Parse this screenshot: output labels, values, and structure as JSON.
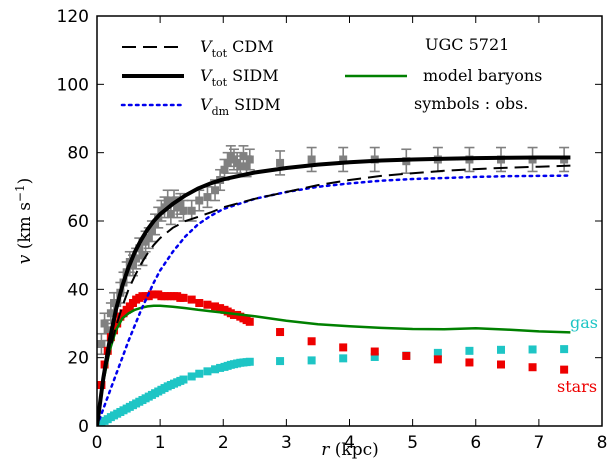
{
  "chart_data": {
    "type": "scatter",
    "title": "",
    "xlabel": {
      "sym": "r",
      "rest": " (kpc)"
    },
    "ylabel": {
      "sym": "v",
      "rest": " (km s",
      "sup": "−1",
      "close": ")"
    },
    "xlim": [
      0,
      8
    ],
    "ylim": [
      0,
      120
    ],
    "xticks": [
      "0",
      "1",
      "2",
      "3",
      "4",
      "5",
      "6",
      "7",
      "8"
    ],
    "yticks": [
      "0",
      "20",
      "40",
      "60",
      "80",
      "100",
      "120"
    ],
    "grid": false,
    "legend_placement": "top",
    "annotations": {
      "galaxy": "UGC 5721",
      "symbols": "symbols : obs.",
      "gas": "gas",
      "stars": "stars"
    },
    "series": [
      {
        "name": "V_tot CDM",
        "legend": {
          "sym": "V",
          "sub": "tot",
          "rest": " CDM"
        },
        "kind": "line",
        "style": "dashed",
        "color": "#000000",
        "width": 2,
        "x": [
          0,
          0.1,
          0.2,
          0.3,
          0.4,
          0.5,
          0.6,
          0.7,
          0.8,
          0.9,
          1.0,
          1.2,
          1.4,
          1.6,
          1.8,
          2.0,
          2.5,
          3.0,
          3.5,
          4.0,
          4.5,
          5.0,
          5.5,
          6.0,
          6.5,
          7.0,
          7.5
        ],
        "y": [
          0,
          13,
          22,
          29,
          35,
          40,
          44,
          47.5,
          50.5,
          53,
          55,
          58,
          60,
          61.2,
          62.5,
          64,
          66.5,
          68.5,
          70.5,
          72,
          73.2,
          74,
          74.7,
          75.2,
          75.6,
          75.9,
          76.2
        ]
      },
      {
        "name": "V_tot SIDM",
        "legend": {
          "sym": "V",
          "sub": "tot",
          "rest": " SIDM"
        },
        "kind": "line",
        "style": "solid",
        "color": "#000000",
        "width": 4,
        "x": [
          0,
          0.1,
          0.2,
          0.3,
          0.4,
          0.5,
          0.6,
          0.7,
          0.8,
          0.9,
          1.0,
          1.2,
          1.4,
          1.6,
          1.8,
          2.0,
          2.5,
          3.0,
          3.5,
          4.0,
          4.5,
          5.0,
          5.5,
          6.0,
          6.5,
          7.0,
          7.5
        ],
        "y": [
          0,
          14,
          25,
          34,
          41,
          46.5,
          51,
          54.5,
          57.5,
          60,
          62,
          65,
          67.5,
          69.5,
          71,
          72.2,
          74.2,
          75.5,
          76.5,
          77.2,
          77.7,
          78,
          78.2,
          78.4,
          78.5,
          78.6,
          78.6
        ]
      },
      {
        "name": "V_dm SIDM",
        "legend": {
          "sym": "V",
          "sub": "dm",
          "rest": " SIDM"
        },
        "kind": "line",
        "style": "dotted",
        "color": "#0000ee",
        "width": 2.5,
        "x": [
          0,
          0.1,
          0.2,
          0.3,
          0.4,
          0.5,
          0.6,
          0.7,
          0.8,
          0.9,
          1.0,
          1.2,
          1.4,
          1.6,
          1.8,
          2.0,
          2.5,
          3.0,
          3.5,
          4.0,
          4.5,
          5.0,
          5.5,
          6.0,
          6.5,
          7.0,
          7.5
        ],
        "y": [
          0,
          5,
          10,
          15,
          20,
          25,
          29.5,
          34,
          38,
          42,
          45.5,
          51,
          55.5,
          59,
          61.5,
          63.5,
          66.5,
          68.5,
          70,
          71,
          71.8,
          72.3,
          72.6,
          72.9,
          73.1,
          73.2,
          73.3
        ]
      },
      {
        "name": "model baryons",
        "legend": {
          "sym": "",
          "sub": "",
          "rest": "model baryons"
        },
        "kind": "line",
        "style": "solid",
        "color": "#008000",
        "width": 2.5,
        "x": [
          0,
          0.1,
          0.2,
          0.3,
          0.4,
          0.5,
          0.6,
          0.7,
          0.8,
          0.9,
          1.0,
          1.2,
          1.4,
          1.6,
          1.8,
          2.0,
          2.5,
          3.0,
          3.5,
          4.0,
          4.5,
          5.0,
          5.5,
          6.0,
          6.5,
          7.0,
          7.5
        ],
        "y": [
          0,
          13,
          22,
          28,
          31.5,
          33,
          34,
          34.6,
          35,
          35.2,
          35.2,
          34.9,
          34.5,
          34.0,
          33.6,
          33.2,
          32.1,
          30.8,
          29.8,
          29.2,
          28.7,
          28.4,
          28.3,
          28.6,
          28.2,
          27.7,
          27.4
        ]
      },
      {
        "name": "observed",
        "kind": "errorbar",
        "marker": "square",
        "color": "#808080",
        "x": [
          0.07,
          0.12,
          0.17,
          0.22,
          0.27,
          0.32,
          0.37,
          0.42,
          0.47,
          0.52,
          0.57,
          0.62,
          0.67,
          0.72,
          0.77,
          0.82,
          0.87,
          0.92,
          0.97,
          1.02,
          1.07,
          1.12,
          1.17,
          1.22,
          1.27,
          1.32,
          1.37,
          1.5,
          1.62,
          1.75,
          1.87,
          1.95,
          2.02,
          2.07,
          2.12,
          2.17,
          2.22,
          2.27,
          2.32,
          2.37,
          2.42,
          2.9,
          3.4,
          3.9,
          4.4,
          4.9,
          5.4,
          5.9,
          6.4,
          6.9,
          7.4
        ],
        "y": [
          24,
          30,
          28,
          33,
          36,
          36,
          39,
          42,
          45,
          48,
          47,
          49,
          52,
          50,
          54,
          55,
          57,
          59,
          61,
          63,
          64,
          66,
          62,
          66,
          64,
          65,
          63,
          63,
          66,
          67,
          69,
          72,
          75,
          77,
          79,
          78,
          77,
          76,
          79,
          76,
          78,
          77,
          78,
          78,
          78,
          77.5,
          78,
          78,
          78,
          78,
          78
        ],
        "err": [
          3,
          3,
          3,
          3,
          3,
          3,
          3,
          3,
          3,
          3,
          3,
          3,
          3,
          3,
          3,
          3,
          3,
          3,
          3,
          3,
          3,
          3,
          3,
          3,
          3,
          3,
          3,
          3,
          3,
          3,
          3,
          3,
          3,
          3,
          3,
          3,
          3,
          3,
          3,
          3,
          3,
          3.5,
          3.5,
          3.5,
          3.5,
          3.5,
          3.5,
          3.5,
          3.5,
          3.5,
          3.5
        ]
      },
      {
        "name": "gas",
        "kind": "scatter",
        "marker": "square",
        "color": "#1ec5c5",
        "x": [
          0.07,
          0.12,
          0.17,
          0.22,
          0.27,
          0.32,
          0.37,
          0.42,
          0.47,
          0.52,
          0.57,
          0.62,
          0.67,
          0.72,
          0.77,
          0.82,
          0.87,
          0.92,
          0.97,
          1.02,
          1.07,
          1.12,
          1.17,
          1.22,
          1.27,
          1.32,
          1.37,
          1.5,
          1.62,
          1.75,
          1.87,
          1.95,
          2.02,
          2.07,
          2.12,
          2.17,
          2.22,
          2.27,
          2.32,
          2.37,
          2.42,
          2.9,
          3.4,
          3.9,
          4.4,
          4.9,
          5.4,
          5.9,
          6.4,
          6.9,
          7.4
        ],
        "y": [
          0.5,
          1.5,
          2.0,
          2.6,
          3.1,
          3.6,
          4.1,
          4.6,
          5.1,
          5.6,
          6.1,
          6.6,
          7.1,
          7.6,
          8.1,
          8.6,
          9.1,
          9.6,
          10.1,
          10.6,
          11.1,
          11.6,
          12.0,
          12.4,
          12.8,
          13.2,
          13.6,
          14.5,
          15.3,
          16.0,
          16.6,
          17.0,
          17.3,
          17.6,
          17.9,
          18.1,
          18.3,
          18.5,
          18.6,
          18.7,
          18.8,
          19.0,
          19.2,
          19.8,
          20.2,
          20.6,
          21.4,
          22.0,
          22.3,
          22.4,
          22.5
        ]
      },
      {
        "name": "stars",
        "kind": "scatter",
        "marker": "square",
        "color": "#ee0000",
        "x": [
          0.07,
          0.12,
          0.17,
          0.22,
          0.27,
          0.32,
          0.37,
          0.42,
          0.47,
          0.52,
          0.57,
          0.62,
          0.67,
          0.72,
          0.77,
          0.82,
          0.87,
          0.92,
          0.97,
          1.02,
          1.07,
          1.12,
          1.17,
          1.22,
          1.27,
          1.32,
          1.37,
          1.5,
          1.62,
          1.75,
          1.87,
          1.95,
          2.02,
          2.07,
          2.12,
          2.17,
          2.22,
          2.27,
          2.32,
          2.37,
          2.42,
          2.9,
          3.4,
          3.9,
          4.4,
          4.9,
          5.4,
          5.9,
          6.4,
          6.9,
          7.4
        ],
        "y": [
          12,
          18,
          22,
          26,
          28,
          30,
          32,
          33,
          34,
          35,
          36,
          37,
          37.5,
          38,
          38,
          38,
          38.5,
          38.5,
          38.5,
          38,
          38,
          38,
          38,
          38,
          38,
          37.5,
          37.5,
          37,
          36,
          35.5,
          35,
          34.5,
          34,
          33.5,
          33,
          32.5,
          32.5,
          32,
          31.5,
          31,
          30.5,
          27.5,
          24.8,
          23,
          21.8,
          20.5,
          19.5,
          18.6,
          18,
          17.2,
          16.5
        ]
      }
    ]
  }
}
